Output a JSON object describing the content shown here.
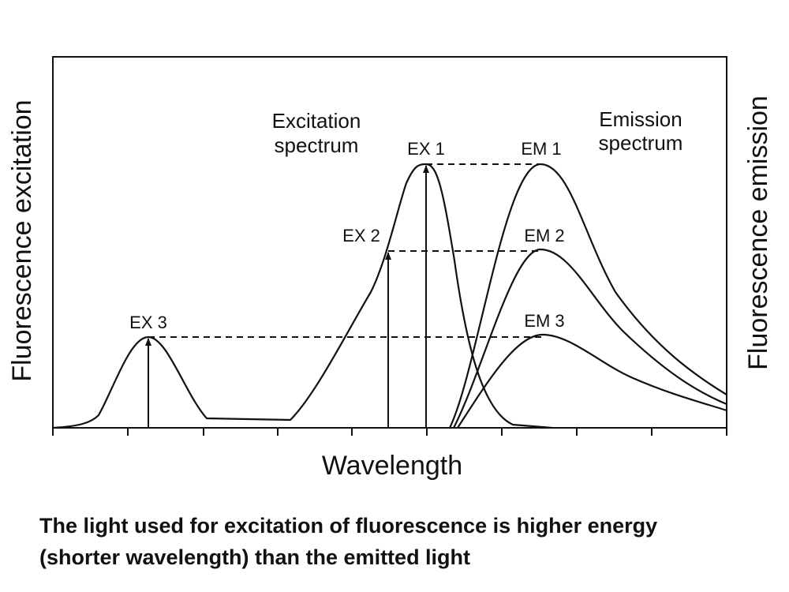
{
  "diagram": {
    "y_left_label": "Fluorescence excitation",
    "y_right_label": "Fluorescence emission",
    "x_label": "Wavelength",
    "excitation_label": [
      "Excitation",
      "spectrum"
    ],
    "emission_label": [
      "Emission",
      "spectrum"
    ],
    "peak_labels": [
      "EX 1",
      "EX 2",
      "EX 3",
      "EM 1",
      "EM 2",
      "EM 3"
    ]
  },
  "caption": [
    "The light used for excitation of fluorescence is higher energy",
    "(shorter wavelength) than the emitted light"
  ]
}
